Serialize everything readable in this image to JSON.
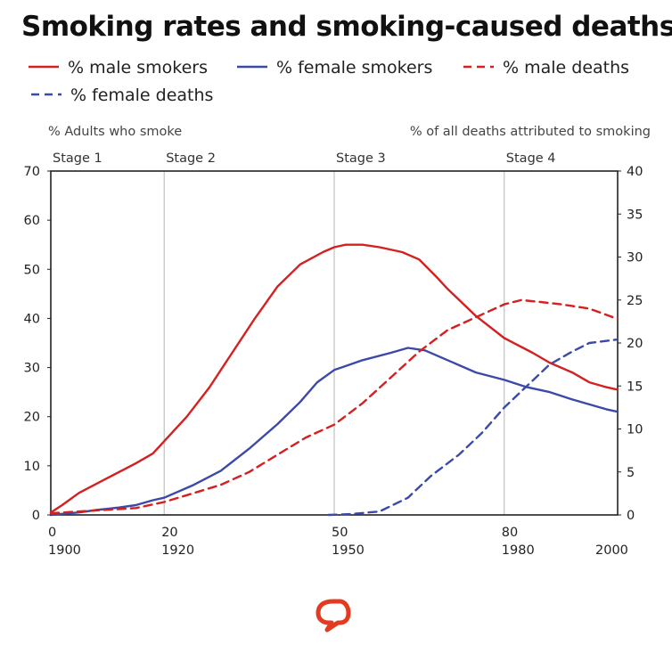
{
  "title": "Smoking rates and smoking-caused deaths",
  "logo_icon": "speech-bubble-icon",
  "chart_data": {
    "type": "line",
    "title": "Smoking rates and smoking-caused deaths",
    "left_axis_label": "% Adults who smoke",
    "right_axis_label": "% of all deaths attributed to smoking",
    "x_range": [
      0,
      100
    ],
    "left_ylim": [
      0,
      70
    ],
    "right_ylim": [
      0,
      40
    ],
    "left_ticks": [
      0,
      10,
      20,
      30,
      40,
      50,
      60,
      70
    ],
    "right_ticks": [
      0,
      5,
      10,
      15,
      20,
      25,
      30,
      35,
      40
    ],
    "x_ticks": [
      {
        "value": 0,
        "top": "0",
        "bottom": "1900"
      },
      {
        "value": 20,
        "top": "20",
        "bottom": "1920"
      },
      {
        "value": 50,
        "top": "50",
        "bottom": "1950"
      },
      {
        "value": 80,
        "top": "80",
        "bottom": "1980"
      },
      {
        "value": 100,
        "top": "",
        "bottom": "2000"
      }
    ],
    "stages": [
      {
        "label": "Stage 1",
        "x": 0
      },
      {
        "label": "Stage 2",
        "x": 20
      },
      {
        "label": "Stage 3",
        "x": 50
      },
      {
        "label": "Stage 4",
        "x": 80
      }
    ],
    "stage_dividers": [
      20,
      50,
      80
    ],
    "series": [
      {
        "name": "% male smokers",
        "axis": "left",
        "color": "#d42020",
        "dash": false,
        "x": [
          0,
          2,
          5,
          10,
          15,
          18,
          20,
          24,
          28,
          32,
          36,
          40,
          44,
          48,
          50,
          52,
          55,
          58,
          62,
          65,
          68,
          70,
          75,
          80,
          85,
          88,
          92,
          95,
          98,
          100
        ],
        "y": [
          0.5,
          2,
          4.5,
          7.5,
          10.5,
          12.5,
          15,
          20,
          26,
          33,
          40,
          46.5,
          51,
          53.5,
          54.5,
          55,
          55,
          54.5,
          53.5,
          52,
          48.5,
          46,
          40.5,
          36,
          33,
          31,
          29,
          27,
          26,
          25.5
        ]
      },
      {
        "name": "% female smokers",
        "axis": "left",
        "color": "#3b4aa8",
        "dash": false,
        "x": [
          0,
          5,
          8,
          12,
          15,
          18,
          20,
          25,
          30,
          35,
          40,
          44,
          47,
          50,
          55,
          60,
          63,
          66,
          70,
          75,
          80,
          84,
          88,
          92,
          95,
          98,
          100
        ],
        "y": [
          0,
          0.5,
          1,
          1.5,
          2,
          3,
          3.5,
          6,
          9,
          13.5,
          18.5,
          23,
          27,
          29.5,
          31.5,
          33,
          34,
          33.5,
          31.5,
          29,
          27.5,
          26,
          25,
          23.5,
          22.5,
          21.5,
          21
        ]
      },
      {
        "name": "% male deaths",
        "axis": "right",
        "color": "#d42020",
        "dash": true,
        "x": [
          0,
          5,
          10,
          15,
          20,
          25,
          30,
          35,
          40,
          45,
          50,
          55,
          60,
          65,
          70,
          75,
          80,
          83,
          86,
          90,
          95,
          100
        ],
        "y": [
          0.2,
          0.4,
          0.6,
          0.8,
          1.5,
          2.5,
          3.5,
          5,
          7,
          9,
          10.5,
          13,
          16,
          19,
          21.5,
          23,
          24.5,
          25,
          24.8,
          24.5,
          24,
          22.8
        ]
      },
      {
        "name": "% female deaths",
        "axis": "right",
        "color": "#3b4aa8",
        "dash": true,
        "x": [
          49,
          53,
          58,
          63,
          67,
          72,
          76,
          80,
          84,
          88,
          92,
          95,
          100
        ],
        "y": [
          0,
          0.1,
          0.4,
          2,
          4.5,
          7,
          9.5,
          12.5,
          15,
          17.5,
          19,
          20,
          20.4
        ]
      }
    ]
  }
}
